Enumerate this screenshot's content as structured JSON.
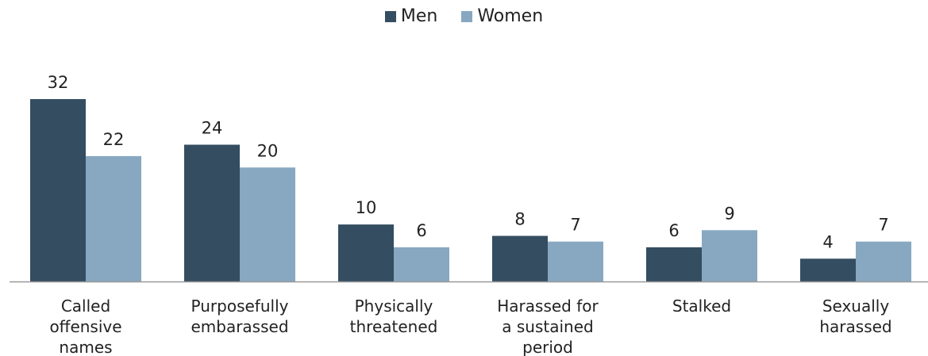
{
  "chart_data": {
    "type": "bar",
    "categories": [
      [
        "Called",
        "offensive",
        "names"
      ],
      [
        "Purposefully",
        "embarassed"
      ],
      [
        "Physically",
        "threatened"
      ],
      [
        "Harassed for",
        "a sustained",
        "period"
      ],
      [
        "Stalked"
      ],
      [
        "Sexually",
        "harassed"
      ]
    ],
    "series": [
      {
        "name": "Men",
        "values": [
          32,
          24,
          10,
          8,
          6,
          4
        ],
        "color": "#344d61"
      },
      {
        "name": "Women",
        "values": [
          22,
          20,
          6,
          7,
          9,
          7
        ],
        "color": "#87a8c0"
      }
    ],
    "ylim": [
      0,
      32
    ],
    "grid": false,
    "legend_position": "top-center"
  }
}
